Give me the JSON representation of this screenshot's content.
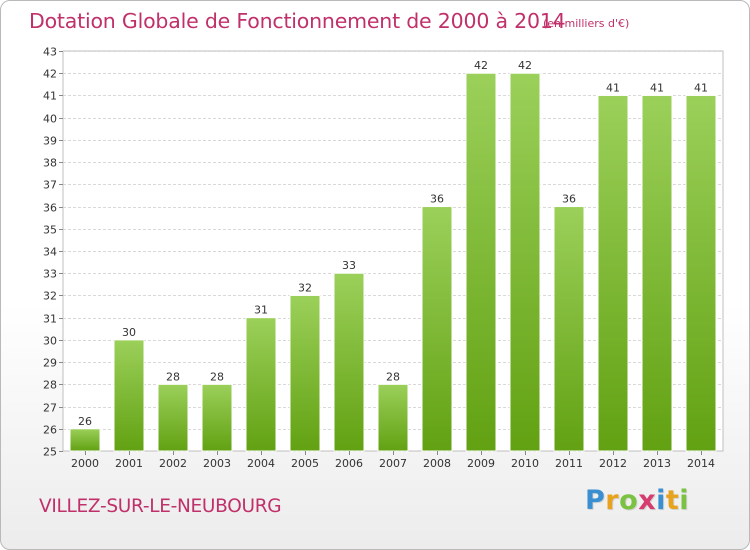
{
  "header": {
    "title": "Dotation Globale de Fonctionnement de 2000 à 2014",
    "unit_note": "(en milliers d'€)"
  },
  "footer": {
    "town": "VILLEZ-SUR-LE-NEUBOURG",
    "logo_text": "Proxiti",
    "logo_letters": [
      {
        "ch": "P",
        "color": "#3a8fd0"
      },
      {
        "ch": "r",
        "color": "#e8a31e"
      },
      {
        "ch": "o",
        "color": "#7cc242"
      },
      {
        "ch": "x",
        "color": "#d63c6f"
      },
      {
        "ch": "i",
        "color": "#3a8fd0"
      },
      {
        "ch": "t",
        "color": "#e8a31e"
      },
      {
        "ch": "i",
        "color": "#7cc242"
      }
    ]
  },
  "colors": {
    "accent": "#c0306a",
    "bar_top": "#9bd05a",
    "bar_bottom": "#62a112",
    "grid": "#d8d8d8",
    "axis_text": "#333333"
  },
  "chart_data": {
    "type": "bar",
    "categories": [
      "2000",
      "2001",
      "2002",
      "2003",
      "2004",
      "2005",
      "2006",
      "2007",
      "2008",
      "2009",
      "2010",
      "2011",
      "2012",
      "2013",
      "2014"
    ],
    "values": [
      26,
      30,
      28,
      28,
      31,
      32,
      33,
      28,
      36,
      42,
      42,
      36,
      41,
      41,
      41
    ],
    "ylim": [
      25,
      43
    ],
    "yticks": [
      25,
      26,
      27,
      28,
      29,
      30,
      31,
      32,
      33,
      34,
      35,
      36,
      37,
      38,
      39,
      40,
      41,
      42,
      43
    ],
    "grid": true,
    "legend": "none",
    "data_labels": true
  }
}
